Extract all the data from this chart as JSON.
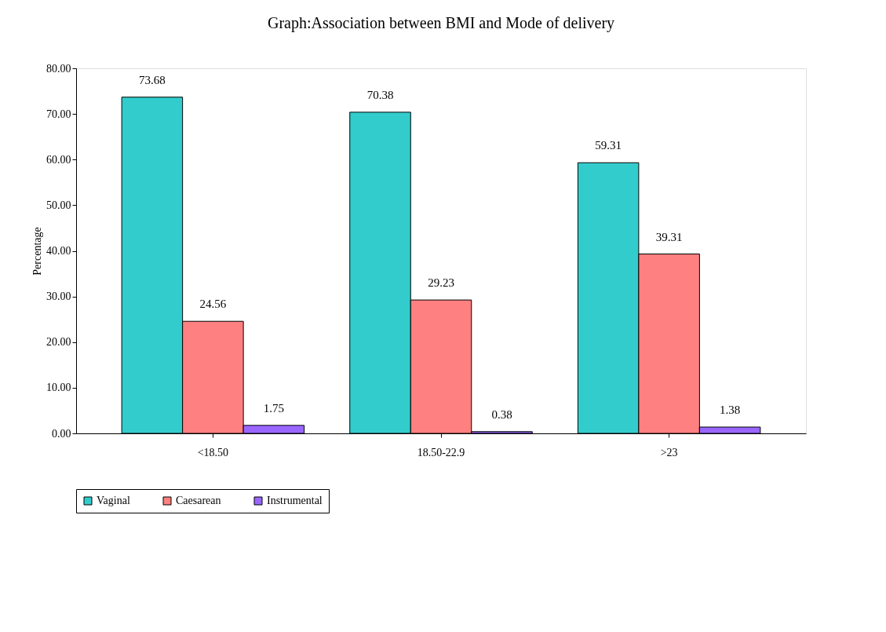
{
  "chart_data": {
    "type": "bar",
    "title": "Graph:Association between BMI and Mode of delivery",
    "ylabel": "Percentage",
    "categories": [
      "<18.50",
      "18.50-22.9",
      ">23"
    ],
    "series": [
      {
        "name": "Vaginal",
        "color": "#33cccc",
        "values": [
          73.68,
          70.38,
          59.31
        ]
      },
      {
        "name": "Caesarean",
        "color": "#ff8080",
        "values": [
          24.56,
          29.23,
          39.31
        ]
      },
      {
        "name": "Instrumental",
        "color": "#9966ff",
        "values": [
          1.75,
          0.38,
          1.38
        ]
      }
    ],
    "ylim": [
      0,
      80
    ],
    "yticks": [
      {
        "value": 0,
        "label": "0.00"
      },
      {
        "value": 10,
        "label": "10.00"
      },
      {
        "value": 20,
        "label": "20.00"
      },
      {
        "value": 30,
        "label": "30.00"
      },
      {
        "value": 40,
        "label": "40.00"
      },
      {
        "value": 50,
        "label": "50.00"
      },
      {
        "value": 60,
        "label": "60.00"
      },
      {
        "value": 70,
        "label": "70.00"
      },
      {
        "value": 80,
        "label": "80.00"
      }
    ],
    "data_labels": true,
    "grid": false,
    "legend": "bottom"
  }
}
